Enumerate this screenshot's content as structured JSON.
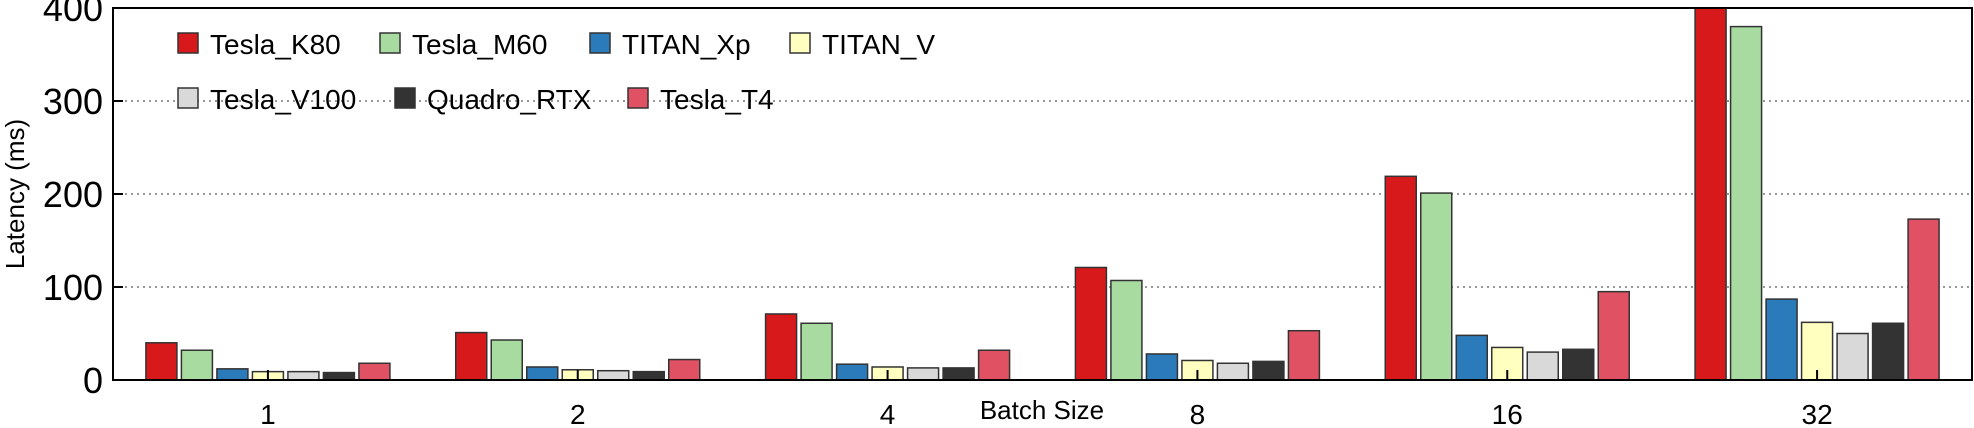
{
  "chart_data": {
    "type": "bar",
    "title": "",
    "xlabel": "Batch Size",
    "ylabel": "Latency (ms)",
    "ylim": [
      0,
      400
    ],
    "yticks": [
      0,
      100,
      200,
      300,
      400
    ],
    "grid": "horizontal dotted",
    "legend_position": "top-left",
    "categories": [
      "1",
      "2",
      "4",
      "8",
      "16",
      "32"
    ],
    "series": [
      {
        "name": "Tesla_K80",
        "color": "#d7191c",
        "values": [
          40,
          51,
          71,
          121,
          219,
          402
        ]
      },
      {
        "name": "Tesla_M60",
        "color": "#a8dba0",
        "values": [
          32,
          43,
          61,
          107,
          201,
          380
        ]
      },
      {
        "name": "TITAN_Xp",
        "color": "#2b7bba",
        "values": [
          12,
          14,
          17,
          28,
          48,
          87
        ]
      },
      {
        "name": "TITAN_V",
        "color": "#ffffbf",
        "values": [
          9,
          11,
          14,
          21,
          35,
          62
        ]
      },
      {
        "name": "Tesla_V100",
        "color": "#d9d9d9",
        "values": [
          9,
          10,
          13,
          18,
          30,
          50
        ]
      },
      {
        "name": "Quadro_RTX",
        "color": "#333333",
        "values": [
          8,
          9,
          13,
          20,
          33,
          61
        ]
      },
      {
        "name": "Tesla_T4",
        "color": "#e05263",
        "values": [
          18,
          22,
          32,
          53,
          95,
          173
        ]
      }
    ]
  }
}
